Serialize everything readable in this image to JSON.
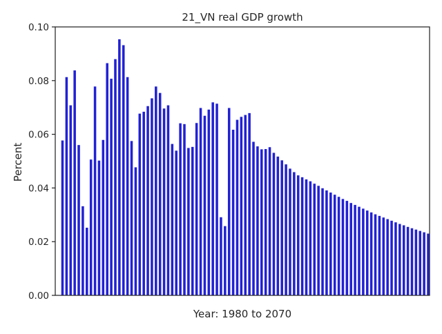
{
  "chart_data": {
    "type": "bar",
    "title": "21_VN real GDP growth",
    "xlabel": "Year: 1980 to 2070",
    "ylabel": "Percent",
    "ylim": [
      0,
      0.1
    ],
    "yticks": [
      "0.00",
      "0.02",
      "0.04",
      "0.06",
      "0.08",
      "0.10"
    ],
    "bar_color": "#2121d4",
    "grid": false,
    "x_start": 1980,
    "x_end": 2070,
    "values": [
      0.0577,
      0.0813,
      0.0708,
      0.0838,
      0.056,
      0.0332,
      0.0252,
      0.0506,
      0.0778,
      0.0502,
      0.0579,
      0.0865,
      0.0807,
      0.088,
      0.0954,
      0.0932,
      0.0813,
      0.0575,
      0.0477,
      0.0677,
      0.0684,
      0.0705,
      0.0734,
      0.0778,
      0.0754,
      0.0696,
      0.0708,
      0.0564,
      0.0539,
      0.0641,
      0.0638,
      0.0549,
      0.0553,
      0.0642,
      0.0698,
      0.0669,
      0.0692,
      0.0719,
      0.0714,
      0.0291,
      0.0258,
      0.0698,
      0.0617,
      0.0654,
      0.0665,
      0.0672,
      0.0679,
      0.0572,
      0.0555,
      0.0544,
      0.0545,
      0.0552,
      0.0531,
      0.0517,
      0.0503,
      0.0488,
      0.0472,
      0.0459,
      0.0447,
      0.044,
      0.0432,
      0.0425,
      0.0416,
      0.0408,
      0.0399,
      0.0391,
      0.0383,
      0.0375,
      0.0367,
      0.0359,
      0.0352,
      0.0344,
      0.0337,
      0.033,
      0.0323,
      0.0316,
      0.0309,
      0.0302,
      0.0296,
      0.029,
      0.0284,
      0.0278,
      0.0272,
      0.0266,
      0.0261,
      0.0255,
      0.025,
      0.0245,
      0.024,
      0.0235,
      0.023
    ]
  }
}
